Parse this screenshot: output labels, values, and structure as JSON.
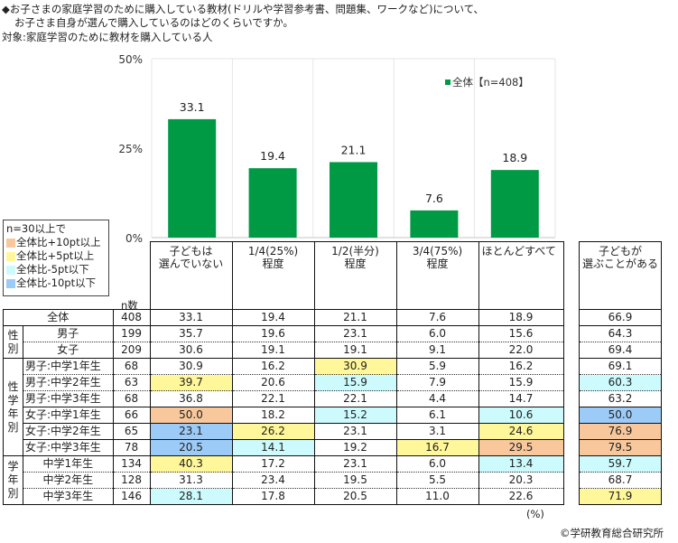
{
  "header": {
    "line1": "◆お子さまの家庭学習のために購入している教材(ドリルや学習参考書、問題集、ワークなど)について、",
    "line2": "お子さま自身が選んで購入しているのはどのくらいですか。",
    "line3": "対象:家庭学習のために教材を購入している人"
  },
  "legend_box": {
    "title": "n=30以上で",
    "items": [
      {
        "label": "全体比+10pt以上",
        "color": "#F8C89C"
      },
      {
        "label": "全体比+5pt以上",
        "color": "#FFF799"
      },
      {
        "label": "全体比-5pt以下",
        "color": "#CCFAFD"
      },
      {
        "label": "全体比-10pt以下",
        "color": "#9DCBF7"
      }
    ]
  },
  "chart_data": {
    "type": "bar",
    "title": "",
    "categories": [
      "子どもは選んでいない",
      "1/4(25%)程度",
      "1/2(半分)程度",
      "3/4(75%)程度",
      "ほとんどすべて"
    ],
    "series": [
      {
        "name": "全体【n=408】",
        "values": [
          33.1,
          19.4,
          21.1,
          7.6,
          18.9
        ],
        "color": "#009944"
      }
    ],
    "ylim": [
      0,
      50
    ],
    "yticks": [
      "0%",
      "25%",
      "50%"
    ],
    "ytick_values": [
      0,
      25,
      50
    ],
    "grid": true,
    "legend_position": "top-right"
  },
  "table": {
    "n_label": "n数",
    "columns": [
      {
        "line1": "子どもは",
        "line2": "選んでいない"
      },
      {
        "line1": "1/4(25%)",
        "line2": "程度"
      },
      {
        "line1": "1/2(半分)",
        "line2": "程度"
      },
      {
        "line1": "3/4(75%)",
        "line2": "程度"
      },
      {
        "line1": "ほとんどすべて",
        "line2": ""
      }
    ],
    "side_column": {
      "line1": "子どもが",
      "line2": "選ぶことがある"
    },
    "groups": [
      {
        "label": "",
        "rows": [
          {
            "label": "全体",
            "n": "408",
            "values": [
              "33.1",
              "19.4",
              "21.1",
              "7.6",
              "18.9"
            ],
            "hl": [
              "",
              "",
              "",
              "",
              ""
            ],
            "side": "66.9",
            "side_hl": ""
          }
        ]
      },
      {
        "label": "性別",
        "rows": [
          {
            "label": "男子",
            "n": "199",
            "values": [
              "35.7",
              "19.6",
              "23.1",
              "6.0",
              "15.6"
            ],
            "hl": [
              "",
              "",
              "",
              "",
              ""
            ],
            "side": "64.3",
            "side_hl": ""
          },
          {
            "label": "女子",
            "n": "209",
            "values": [
              "30.6",
              "19.1",
              "19.1",
              "9.1",
              "22.0"
            ],
            "hl": [
              "",
              "",
              "",
              "",
              ""
            ],
            "side": "69.4",
            "side_hl": ""
          }
        ]
      },
      {
        "label": "性学年別",
        "rows": [
          {
            "label": "男子:中学1年生",
            "n": "68",
            "values": [
              "30.9",
              "16.2",
              "30.9",
              "5.9",
              "16.2"
            ],
            "hl": [
              "",
              "",
              "y",
              "",
              ""
            ],
            "side": "69.1",
            "side_hl": ""
          },
          {
            "label": "男子:中学2年生",
            "n": "63",
            "values": [
              "39.7",
              "20.6",
              "15.9",
              "7.9",
              "15.9"
            ],
            "hl": [
              "y",
              "",
              "c",
              "",
              ""
            ],
            "side": "60.3",
            "side_hl": "c"
          },
          {
            "label": "男子:中学3年生",
            "n": "68",
            "values": [
              "36.8",
              "22.1",
              "22.1",
              "4.4",
              "14.7"
            ],
            "hl": [
              "",
              "",
              "",
              "",
              ""
            ],
            "side": "63.2",
            "side_hl": ""
          },
          {
            "label": "女子:中学1年生",
            "n": "66",
            "values": [
              "50.0",
              "18.2",
              "15.2",
              "6.1",
              "10.6"
            ],
            "hl": [
              "o",
              "",
              "c",
              "",
              "c"
            ],
            "side": "50.0",
            "side_hl": "b"
          },
          {
            "label": "女子:中学2年生",
            "n": "65",
            "values": [
              "23.1",
              "26.2",
              "23.1",
              "3.1",
              "24.6"
            ],
            "hl": [
              "b",
              "y",
              "",
              "",
              "y"
            ],
            "side": "76.9",
            "side_hl": "o"
          },
          {
            "label": "女子:中学3年生",
            "n": "78",
            "values": [
              "20.5",
              "14.1",
              "19.2",
              "16.7",
              "29.5"
            ],
            "hl": [
              "b",
              "c",
              "",
              "y",
              "o"
            ],
            "side": "79.5",
            "side_hl": "o"
          }
        ]
      },
      {
        "label": "学年別",
        "rows": [
          {
            "label": "中学1年生",
            "n": "134",
            "values": [
              "40.3",
              "17.2",
              "23.1",
              "6.0",
              "13.4"
            ],
            "hl": [
              "y",
              "",
              "",
              "",
              "c"
            ],
            "side": "59.7",
            "side_hl": "c"
          },
          {
            "label": "中学2年生",
            "n": "128",
            "values": [
              "31.3",
              "23.4",
              "19.5",
              "5.5",
              "20.3"
            ],
            "hl": [
              "",
              "",
              "",
              "",
              ""
            ],
            "side": "68.7",
            "side_hl": ""
          },
          {
            "label": "中学3年生",
            "n": "146",
            "values": [
              "28.1",
              "17.8",
              "20.5",
              "11.0",
              "22.6"
            ],
            "hl": [
              "c",
              "",
              "",
              "",
              ""
            ],
            "side": "71.9",
            "side_hl": "y"
          }
        ]
      }
    ]
  },
  "footer": {
    "unit": "(%)",
    "copyright": "©学研教育総合研究所"
  }
}
